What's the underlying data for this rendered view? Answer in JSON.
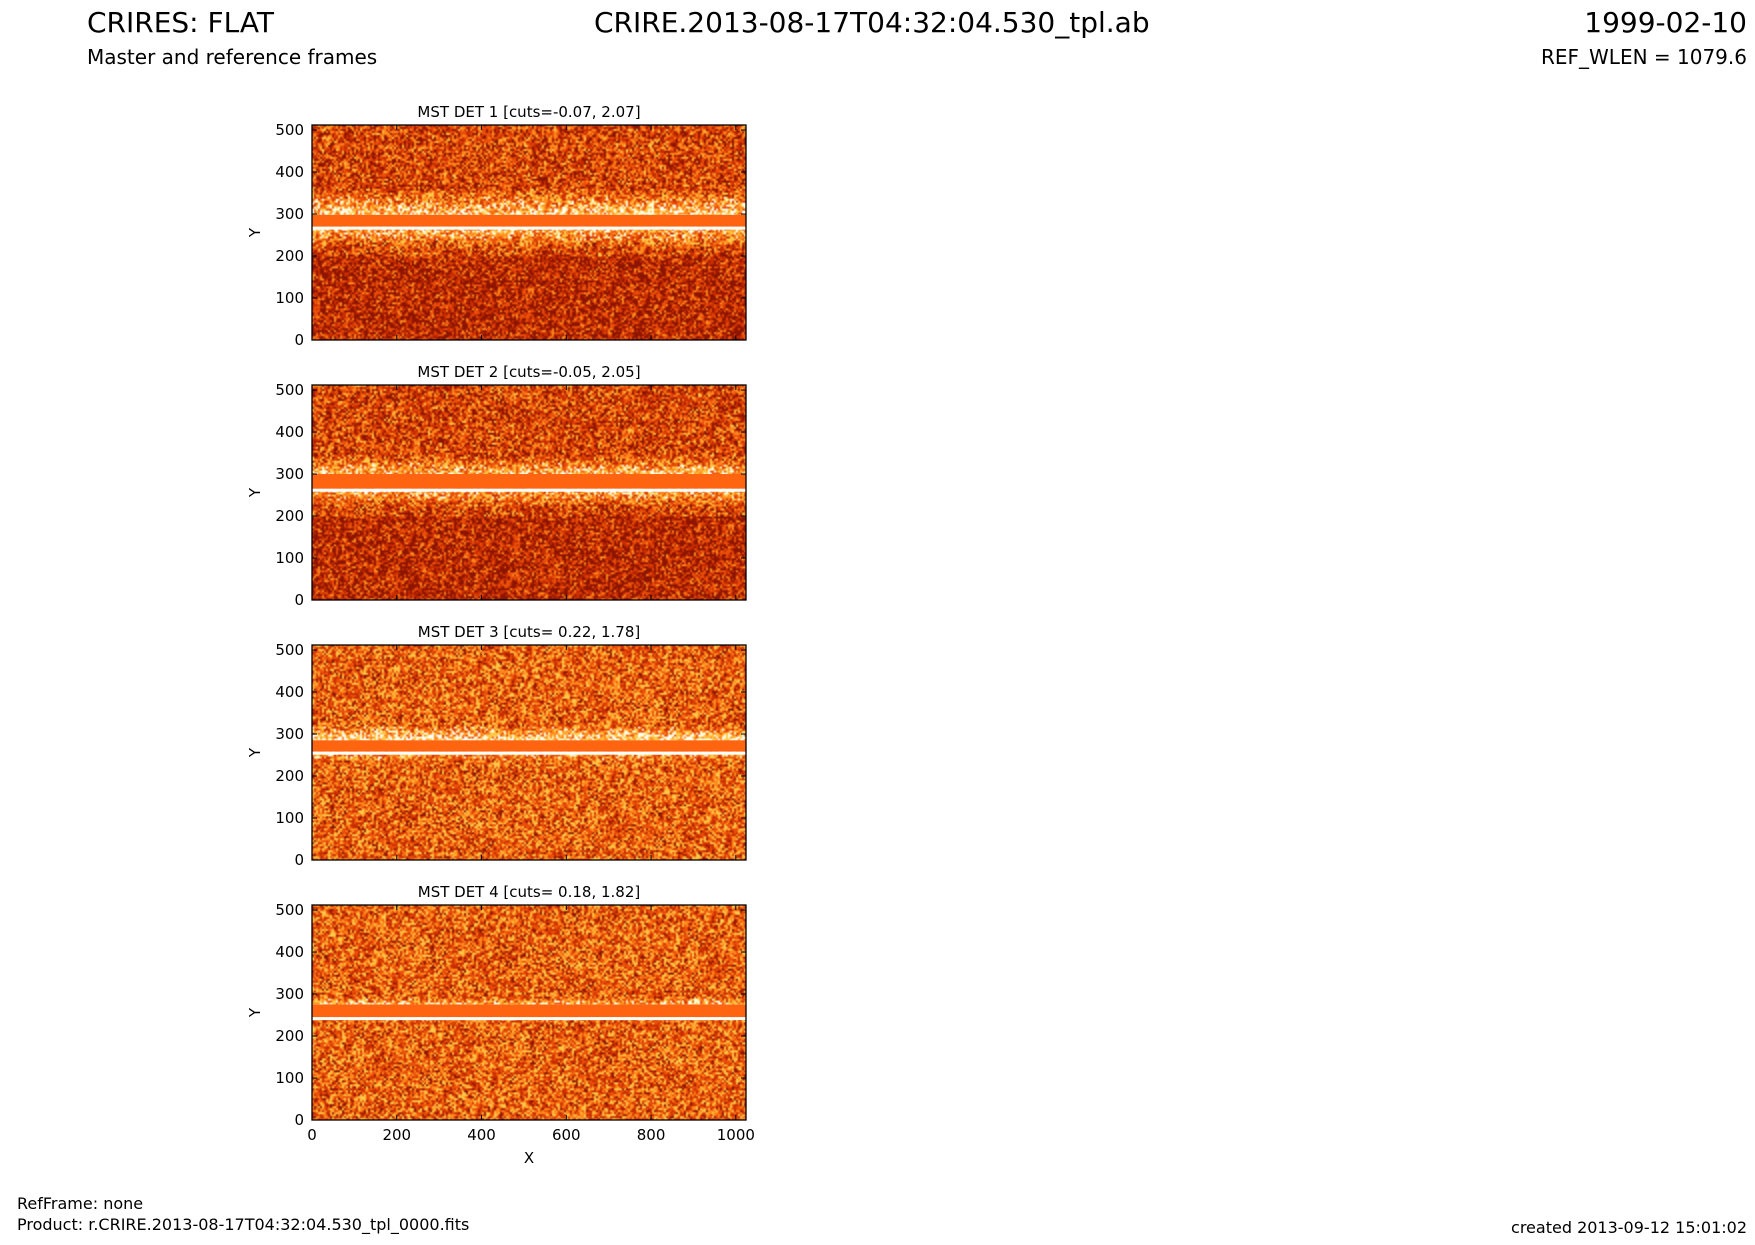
{
  "header": {
    "title": "CRIRES: FLAT",
    "subtitle": "Master and reference frames",
    "filename": "CRIRE.2013-08-17T04:32:04.530_tpl.ab",
    "date": "1999-02-10",
    "ref_wlen": "REF_WLEN = 1079.6"
  },
  "footer": {
    "refframe": "RefFrame: none",
    "product": "Product: r.CRIRE.2013-08-17T04:32:04.530_tpl_0000.fits",
    "created": "created 2013-09-12 15:01:02"
  },
  "colors": {
    "band": "#ff6411",
    "dark": "#b42800",
    "mid": "#e64b0a",
    "light": "#ffc846",
    "white": "#ffffff"
  },
  "chart_data": [
    {
      "type": "heatmap",
      "title": "MST DET 1 [cuts=-0.07, 2.07]",
      "cuts": [
        -0.07,
        2.07
      ],
      "xlabel": "",
      "ylabel": "Y",
      "xlim": [
        0,
        1024
      ],
      "ylim": [
        0,
        512
      ],
      "xticks": [],
      "yticks": [
        0,
        100,
        200,
        300,
        400,
        500
      ],
      "band_y": [
        270,
        298
      ],
      "bright_y": [
        215,
        360
      ]
    },
    {
      "type": "heatmap",
      "title": "MST DET 2 [cuts=-0.05, 2.05]",
      "cuts": [
        -0.05,
        2.05
      ],
      "xlabel": "",
      "ylabel": "Y",
      "xlim": [
        0,
        1024
      ],
      "ylim": [
        0,
        512
      ],
      "xticks": [],
      "yticks": [
        0,
        100,
        200,
        300,
        400,
        500
      ],
      "band_y": [
        265,
        300
      ],
      "bright_y": [
        220,
        345
      ]
    },
    {
      "type": "heatmap",
      "title": "MST DET 3 [cuts= 0.22, 1.78]",
      "cuts": [
        0.22,
        1.78
      ],
      "xlabel": "",
      "ylabel": "Y",
      "xlim": [
        0,
        1024
      ],
      "ylim": [
        0,
        512
      ],
      "xticks": [],
      "yticks": [
        0,
        100,
        200,
        300,
        400,
        500
      ],
      "band_y": [
        258,
        285
      ],
      "bright_y": [
        235,
        320
      ]
    },
    {
      "type": "heatmap",
      "title": "MST DET 4 [cuts= 0.18, 1.82]",
      "cuts": [
        0.18,
        1.82
      ],
      "xlabel": "X",
      "ylabel": "Y",
      "xlim": [
        0,
        1024
      ],
      "ylim": [
        0,
        512
      ],
      "xticks": [
        0,
        200,
        400,
        600,
        800,
        1000
      ],
      "yticks": [
        0,
        100,
        200,
        300,
        400,
        500
      ],
      "band_y": [
        245,
        275
      ],
      "bright_y": [
        235,
        290
      ]
    }
  ]
}
